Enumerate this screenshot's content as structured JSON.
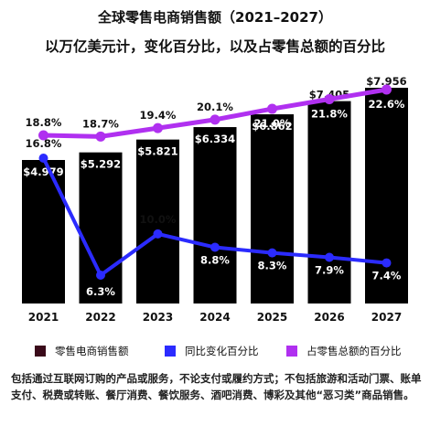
{
  "title": "全球零售电商销售额（2021–2027）",
  "subtitle": "以万亿美元计，变化百分比，以及占零售总额的百分比",
  "legend": {
    "sales": "零售电商销售额",
    "yoy": "同比变化百分比",
    "share": "占零售总额的百分比"
  },
  "footnote": "包括通过互联网订购的产品或服务，不论支付或履约方式；不包括旅游和活动门票、账单支付、税费或转账、餐厅消费、餐饮服务、酒吧消费、博彩及其他“恶习类”商品销售。",
  "colors": {
    "bar": "#000000",
    "legend_sales": "#3a0a1a",
    "yoy": "#2b2bff",
    "share": "#b030f0",
    "bar_label": "#ffffff"
  },
  "chart_data": {
    "type": "bar",
    "categories": [
      "2021",
      "2022",
      "2023",
      "2024",
      "2025",
      "2026",
      "2027"
    ],
    "series": [
      {
        "name": "零售电商销售额",
        "type": "bar",
        "values": [
          4.979,
          5.292,
          5.821,
          6.334,
          6.862,
          7.405,
          7.956
        ],
        "labels": [
          "$4.979",
          "$5.292",
          "$5.821",
          "$6.334",
          "$6.862",
          "$7.405",
          "$7.956"
        ]
      },
      {
        "name": "同比变化百分比",
        "type": "line",
        "values": [
          16.8,
          6.3,
          10.0,
          8.8,
          8.3,
          7.9,
          7.4
        ],
        "labels": [
          "16.8%",
          "6.3%",
          "10.0%",
          "8.8%",
          "8.3%",
          "7.9%",
          "7.4%"
        ]
      },
      {
        "name": "占零售总额的百分比",
        "type": "line",
        "values": [
          18.8,
          18.7,
          19.4,
          20.1,
          21.0,
          21.8,
          22.6
        ],
        "labels": [
          "18.8%",
          "18.7%",
          "19.4%",
          "20.1%",
          "21.0%",
          "21.8%",
          "22.6%"
        ]
      }
    ],
    "grid": false,
    "legend_position": "bottom"
  }
}
